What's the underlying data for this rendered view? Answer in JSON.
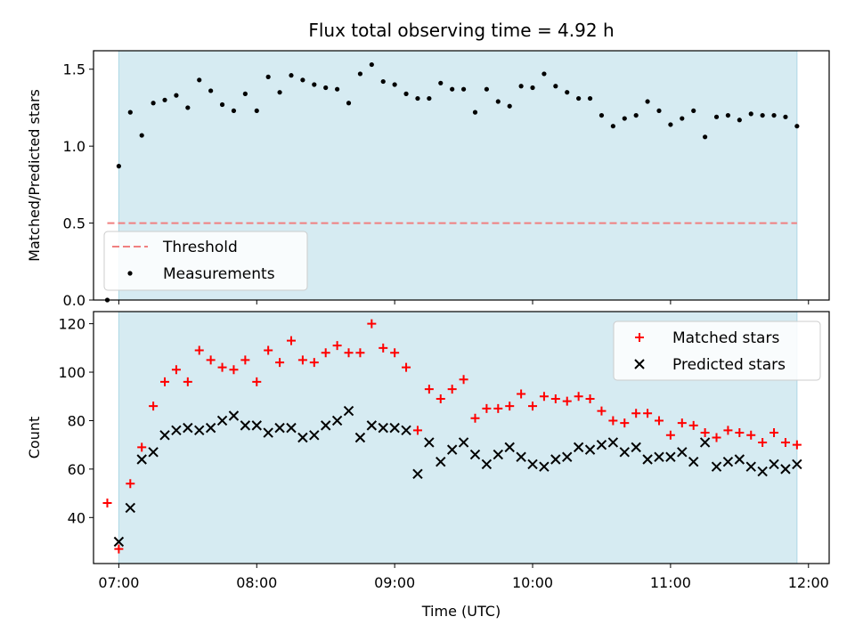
{
  "title": "Flux total observing time = 4.92 h",
  "colors": {
    "shade": "#add8e6",
    "threshold": "#f08080",
    "matched": "#ff0000",
    "predicted": "#000000",
    "measurement": "#000000"
  },
  "chart_data": [
    {
      "type": "scatter",
      "ylabel": "Matched/Predicted stars",
      "xlim": [
        "06:49",
        "12:09"
      ],
      "ylim": [
        0,
        1.62
      ],
      "x_ticks": [
        "07:00",
        "08:00",
        "09:00",
        "10:00",
        "11:00",
        "12:00"
      ],
      "y_ticks": [
        "0.0",
        "0.5",
        "1.0",
        "1.5"
      ],
      "shaded_span": [
        "07:00",
        "11:55"
      ],
      "legend": {
        "location": "lower-left",
        "entries": [
          "Threshold",
          "Measurements"
        ]
      },
      "threshold": {
        "name": "Threshold",
        "y": 0.5,
        "x_start": "06:55",
        "x_end": "11:55"
      },
      "series": [
        {
          "name": "Measurements",
          "x": [
            "06:55",
            "07:00",
            "07:05",
            "07:10",
            "07:15",
            "07:20",
            "07:25",
            "07:30",
            "07:35",
            "07:40",
            "07:45",
            "07:50",
            "07:55",
            "08:00",
            "08:05",
            "08:10",
            "08:15",
            "08:20",
            "08:25",
            "08:30",
            "08:35",
            "08:40",
            "08:45",
            "08:50",
            "08:55",
            "09:00",
            "09:05",
            "09:10",
            "09:15",
            "09:20",
            "09:25",
            "09:30",
            "09:35",
            "09:40",
            "09:45",
            "09:50",
            "09:55",
            "10:00",
            "10:05",
            "10:10",
            "10:15",
            "10:20",
            "10:25",
            "10:30",
            "10:35",
            "10:40",
            "10:45",
            "10:50",
            "10:55",
            "11:00",
            "11:05",
            "11:10",
            "11:15",
            "11:20",
            "11:25",
            "11:30",
            "11:35",
            "11:40",
            "11:45",
            "11:50",
            "11:55"
          ],
          "y": [
            0.0,
            0.87,
            1.22,
            1.07,
            1.28,
            1.3,
            1.33,
            1.25,
            1.43,
            1.36,
            1.27,
            1.23,
            1.34,
            1.23,
            1.45,
            1.35,
            1.46,
            1.43,
            1.4,
            1.38,
            1.37,
            1.28,
            1.47,
            1.53,
            1.42,
            1.4,
            1.34,
            1.31,
            1.31,
            1.41,
            1.37,
            1.37,
            1.22,
            1.37,
            1.29,
            1.26,
            1.39,
            1.38,
            1.47,
            1.39,
            1.35,
            1.31,
            1.31,
            1.2,
            1.13,
            1.18,
            1.2,
            1.29,
            1.23,
            1.14,
            1.18,
            1.23,
            1.06,
            1.19,
            1.2,
            1.17,
            1.21,
            1.2,
            1.2,
            1.19,
            1.13
          ]
        }
      ]
    },
    {
      "type": "scatter",
      "xlabel": "Time (UTC)",
      "ylabel": "Count",
      "xlim": [
        "06:49",
        "12:09"
      ],
      "ylim": [
        21,
        125
      ],
      "x_ticks": [
        "07:00",
        "08:00",
        "09:00",
        "10:00",
        "11:00",
        "12:00"
      ],
      "y_ticks": [
        "40",
        "60",
        "80",
        "100",
        "120"
      ],
      "shaded_span": [
        "07:00",
        "11:55"
      ],
      "legend": {
        "location": "upper-right",
        "entries": [
          "Matched stars",
          "Predicted stars"
        ]
      },
      "series": [
        {
          "name": "Matched stars",
          "x": [
            "06:55",
            "07:00",
            "07:05",
            "07:10",
            "07:15",
            "07:20",
            "07:25",
            "07:30",
            "07:35",
            "07:40",
            "07:45",
            "07:50",
            "07:55",
            "08:00",
            "08:05",
            "08:10",
            "08:15",
            "08:20",
            "08:25",
            "08:30",
            "08:35",
            "08:40",
            "08:45",
            "08:50",
            "08:55",
            "09:00",
            "09:05",
            "09:10",
            "09:15",
            "09:20",
            "09:25",
            "09:30",
            "09:35",
            "09:40",
            "09:45",
            "09:50",
            "09:55",
            "10:00",
            "10:05",
            "10:10",
            "10:15",
            "10:20",
            "10:25",
            "10:30",
            "10:35",
            "10:40",
            "10:45",
            "10:50",
            "10:55",
            "11:00",
            "11:05",
            "11:10",
            "11:15",
            "11:20",
            "11:25",
            "11:30",
            "11:35",
            "11:40",
            "11:45",
            "11:50",
            "11:55"
          ],
          "y": [
            46,
            27,
            54,
            69,
            86,
            96,
            101,
            96,
            109,
            105,
            102,
            101,
            105,
            96,
            109,
            104,
            113,
            105,
            104,
            108,
            111,
            108,
            108,
            120,
            110,
            108,
            102,
            76,
            93,
            89,
            93,
            97,
            81,
            85,
            85,
            86,
            91,
            86,
            90,
            89,
            88,
            90,
            89,
            84,
            80,
            79,
            83,
            83,
            80,
            74,
            79,
            78,
            75,
            73,
            76,
            75,
            74,
            71,
            75,
            71,
            70
          ]
        },
        {
          "name": "Predicted stars",
          "x": [
            "07:00",
            "07:05",
            "07:10",
            "07:15",
            "07:20",
            "07:25",
            "07:30",
            "07:35",
            "07:40",
            "07:45",
            "07:50",
            "07:55",
            "08:00",
            "08:05",
            "08:10",
            "08:15",
            "08:20",
            "08:25",
            "08:30",
            "08:35",
            "08:40",
            "08:45",
            "08:50",
            "08:55",
            "09:00",
            "09:05",
            "09:10",
            "09:15",
            "09:20",
            "09:25",
            "09:30",
            "09:35",
            "09:40",
            "09:45",
            "09:50",
            "09:55",
            "10:00",
            "10:05",
            "10:10",
            "10:15",
            "10:20",
            "10:25",
            "10:30",
            "10:35",
            "10:40",
            "10:45",
            "10:50",
            "10:55",
            "11:00",
            "11:05",
            "11:10",
            "11:15",
            "11:20",
            "11:25",
            "11:30",
            "11:35",
            "11:40",
            "11:45",
            "11:50",
            "11:55"
          ],
          "y": [
            30,
            44,
            64,
            67,
            74,
            76,
            77,
            76,
            77,
            80,
            82,
            78,
            78,
            75,
            77,
            77,
            73,
            74,
            78,
            80,
            84,
            73,
            78,
            77,
            77,
            76,
            58,
            71,
            63,
            68,
            71,
            66,
            62,
            66,
            69,
            65,
            62,
            61,
            64,
            65,
            69,
            68,
            70,
            71,
            67,
            69,
            64,
            65,
            65,
            67,
            63,
            71,
            61,
            63,
            64,
            61,
            59,
            62,
            60,
            62
          ]
        }
      ]
    }
  ]
}
